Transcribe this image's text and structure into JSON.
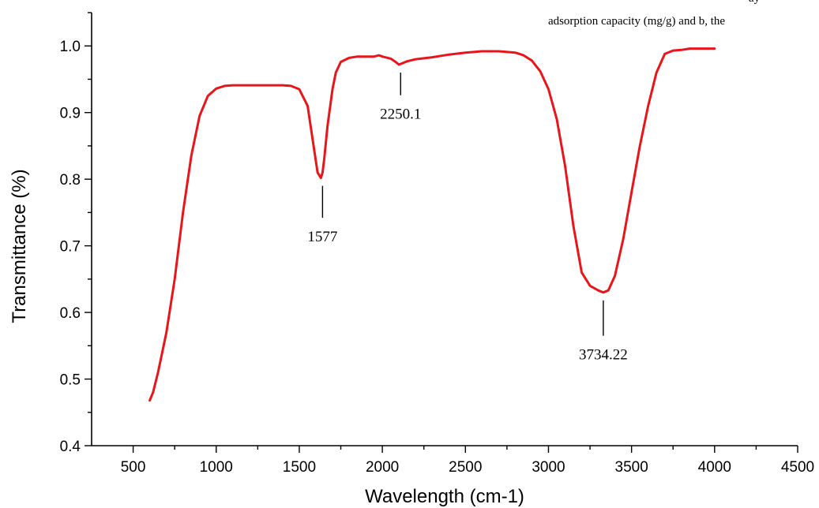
{
  "overlay_text": {
    "line1": "ay",
    "line2": "adsorption capacity (mg/g) and b, the"
  },
  "colors": {
    "series": "#e8151b",
    "axis": "#000000"
  },
  "chart_data": {
    "type": "line",
    "title": "",
    "xlabel": "Wavelength (cm-1)",
    "ylabel": "Transmittance (%)",
    "xlim": [
      250,
      4500
    ],
    "ylim": [
      0.4,
      1.05
    ],
    "x_ticks": [
      500,
      1000,
      1500,
      2000,
      2500,
      3000,
      3500,
      4000,
      4500
    ],
    "x_tick_labels": [
      "500",
      "1000",
      "1500",
      "2000",
      "2500",
      "3000",
      "3500",
      "4000",
      "4500"
    ],
    "y_ticks": [
      0.4,
      0.5,
      0.6,
      0.7,
      0.8,
      0.9,
      1.0
    ],
    "y_tick_labels": [
      "0.4",
      "0.5",
      "0.6",
      "0.7",
      "0.8",
      "0.9",
      "1.0"
    ],
    "grid": false,
    "legend": "none",
    "series": [
      {
        "color": "#e8151b",
        "x": [
          600,
          620,
          650,
          700,
          750,
          800,
          850,
          900,
          950,
          1000,
          1050,
          1100,
          1200,
          1300,
          1400,
          1450,
          1500,
          1550,
          1580,
          1610,
          1630,
          1640,
          1650,
          1670,
          1700,
          1720,
          1750,
          1800,
          1850,
          1900,
          1950,
          1980,
          2000,
          2050,
          2080,
          2100,
          2120,
          2150,
          2200,
          2300,
          2400,
          2500,
          2600,
          2700,
          2800,
          2850,
          2900,
          2950,
          3000,
          3050,
          3100,
          3150,
          3200,
          3250,
          3300,
          3330,
          3360,
          3400,
          3450,
          3500,
          3550,
          3600,
          3650,
          3700,
          3750,
          3800,
          3850,
          3900,
          3950,
          4000
        ],
        "y": [
          0.468,
          0.48,
          0.51,
          0.57,
          0.65,
          0.75,
          0.835,
          0.895,
          0.925,
          0.936,
          0.94,
          0.941,
          0.941,
          0.941,
          0.941,
          0.94,
          0.935,
          0.91,
          0.86,
          0.81,
          0.802,
          0.81,
          0.83,
          0.88,
          0.935,
          0.96,
          0.976,
          0.982,
          0.984,
          0.984,
          0.984,
          0.986,
          0.984,
          0.981,
          0.976,
          0.972,
          0.974,
          0.977,
          0.98,
          0.983,
          0.987,
          0.99,
          0.992,
          0.992,
          0.99,
          0.986,
          0.978,
          0.962,
          0.935,
          0.89,
          0.82,
          0.73,
          0.66,
          0.64,
          0.633,
          0.63,
          0.633,
          0.655,
          0.71,
          0.78,
          0.85,
          0.91,
          0.96,
          0.988,
          0.993,
          0.994,
          0.996,
          0.996,
          0.996,
          0.996
        ]
      }
    ],
    "annotations": [
      {
        "label": "1577",
        "x": 1640,
        "y": 0.802,
        "placement": "below",
        "offset": 0.08
      },
      {
        "label": "2250.1",
        "x": 2110,
        "y": 0.972,
        "placement": "below",
        "offset": 0.066
      },
      {
        "label": "3734.22",
        "x": 3330,
        "y": 0.63,
        "placement": "below",
        "offset": 0.085
      }
    ]
  }
}
